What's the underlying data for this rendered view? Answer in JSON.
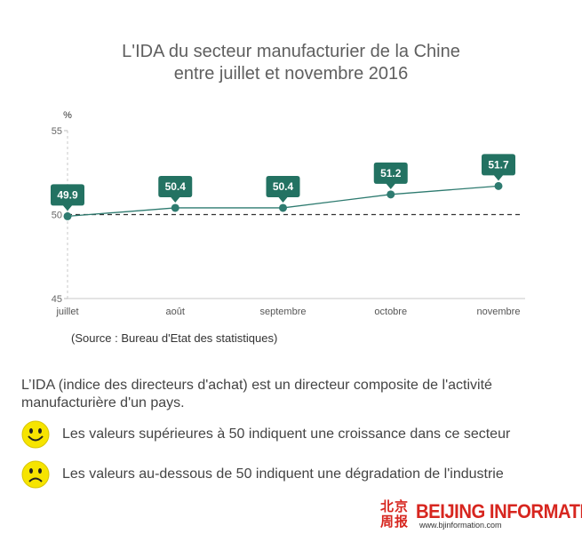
{
  "chart_data": {
    "type": "line",
    "title_line1": "L'IDA du secteur manufacturier de la Chine",
    "title_line2": "entre juillet et novembre 2016",
    "unit_label": "%",
    "categories": [
      "juillet",
      "août",
      "septembre",
      "octobre",
      "novembre"
    ],
    "values": [
      49.9,
      50.4,
      50.4,
      51.2,
      51.7
    ],
    "ylim": [
      45,
      55
    ],
    "yticks": [
      45,
      50,
      55
    ],
    "reference_line": 50,
    "grid": false,
    "line_color": "#2e7b70",
    "label_box_color": "#237262",
    "reference_line_color": "#333333"
  },
  "source": "(Source : Bureau d'Etat des statistiques)",
  "description": "L’IDA (indice des directeurs d'achat) est un directeur composite de l'activité manufacturière d'un pays.",
  "legend": {
    "up_icon": "smiley-face-icon",
    "up_text": "Les valeurs supérieures à 50 indiquent une croissance dans ce secteur",
    "down_icon": "sad-face-icon",
    "down_text": "Les valeurs au-dessous de 50 indiquent une dégradation de l'industrie",
    "face_color": "#f6e400"
  },
  "logo": {
    "chinese": "北京周报",
    "brand": "BEIJING INFORMATION",
    "url": "www.bjinformation.com",
    "color": "#d7261f"
  }
}
